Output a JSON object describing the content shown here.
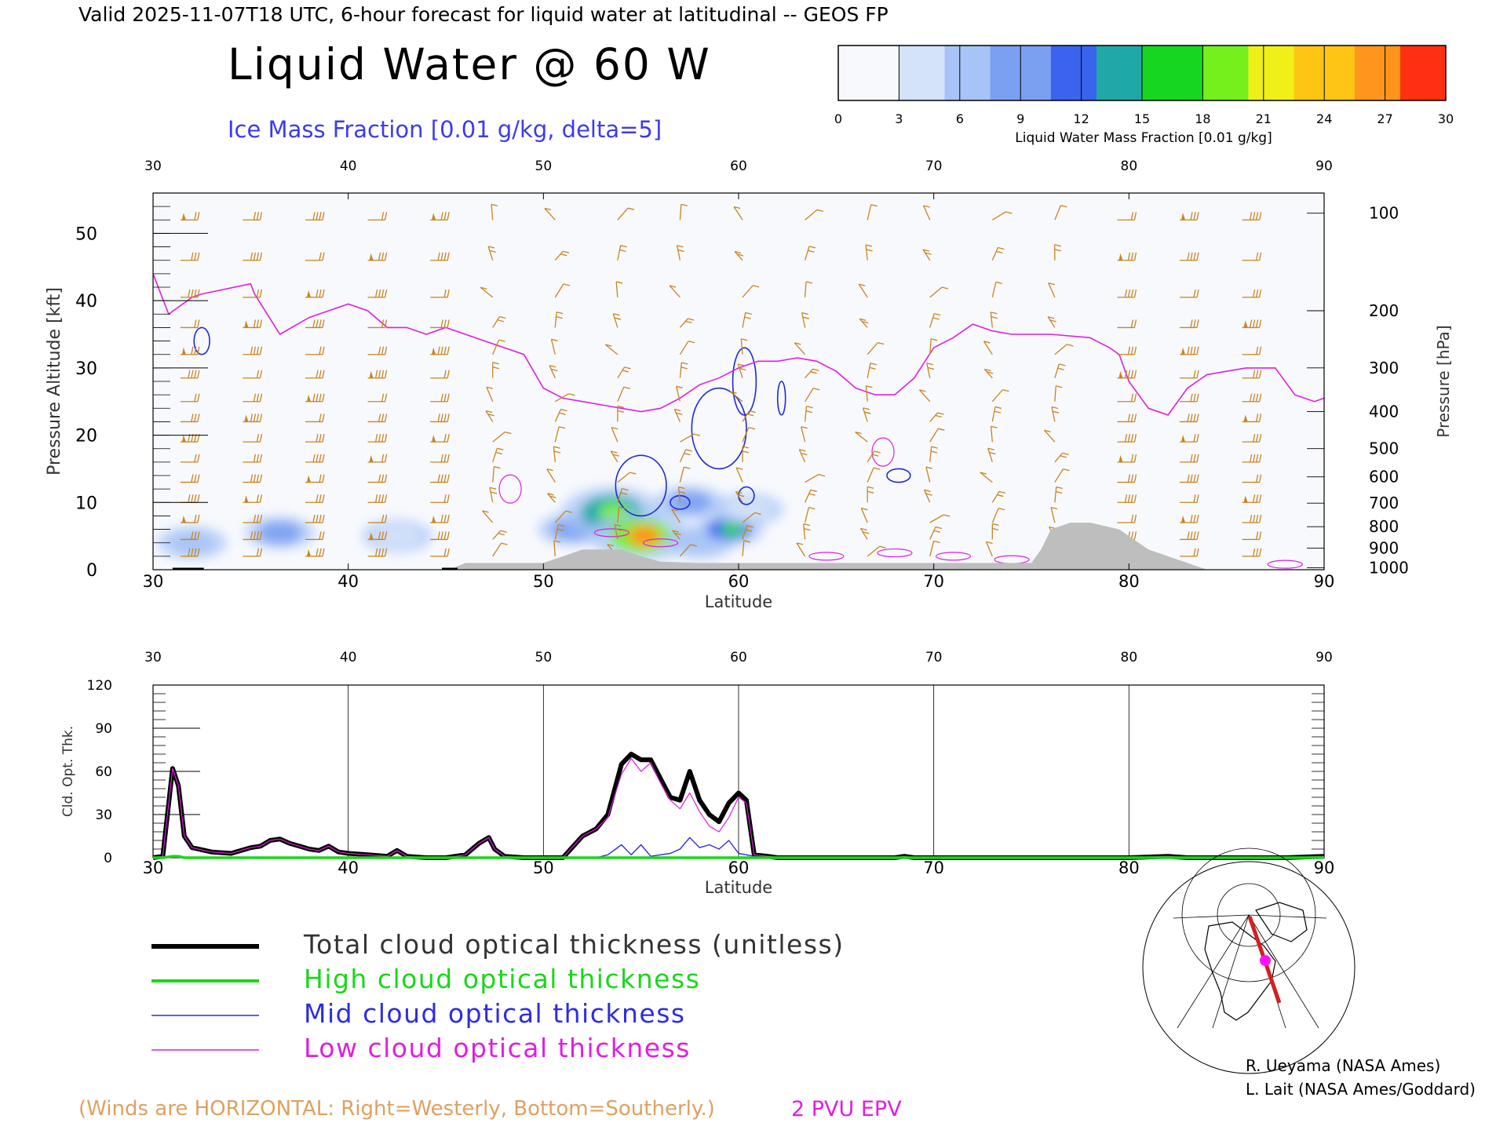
{
  "header": {
    "valid": "Valid 2025-11-07T18 UTC, 6-hour forecast for liquid water at latitudinal -- GEOS FP",
    "title": "Liquid Water @ 60 W",
    "ice_label": "Ice Mass Fraction [0.01 g/kg, delta=5]"
  },
  "colorbar": {
    "ticks": [
      "0",
      "3",
      "6",
      "9",
      "12",
      "15",
      "18",
      "21",
      "24",
      "27",
      "30"
    ],
    "title": "Liquid Water Mass Fraction [0.01 g/kg]",
    "colors": [
      "#f7f9fd",
      "#d4e2fa",
      "#a8c4f6",
      "#7ba0f1",
      "#3a63ee",
      "#1fa8a6",
      "#17d621",
      "#76f01c",
      "#eef018",
      "#ffc515",
      "#ff951c",
      "#ff3012"
    ]
  },
  "chart_data": [
    {
      "type": "heatmap",
      "title": "Liquid Water @ 60 W",
      "xlabel": "Latitude",
      "ylabel": "Pressure Altitude [kft]",
      "y2label": "Pressure [hPa]",
      "xlim": [
        30,
        90
      ],
      "ylim": [
        0,
        56
      ],
      "x_ticks": [
        "30",
        "40",
        "50",
        "60",
        "70",
        "80",
        "90"
      ],
      "y_ticks": [
        "0",
        "10",
        "20",
        "30",
        "40",
        "50"
      ],
      "pressure_ticks": [
        {
          "label": "100",
          "kft": 53
        },
        {
          "label": "200",
          "kft": 38.5
        },
        {
          "label": "300",
          "kft": 30
        },
        {
          "label": "400",
          "kft": 23.5
        },
        {
          "label": "500",
          "kft": 18
        },
        {
          "label": "600",
          "kft": 13.8
        },
        {
          "label": "700",
          "kft": 9.9
        },
        {
          "label": "800",
          "kft": 6.4
        },
        {
          "label": "900",
          "kft": 3.2
        },
        {
          "label": "1000",
          "kft": 0.3
        }
      ],
      "liquid_water_blobs": [
        {
          "lat": 32,
          "kft": 4,
          "value": 8
        },
        {
          "lat": 36.5,
          "kft": 5.5,
          "value": 12
        },
        {
          "lat": 42.5,
          "kft": 5,
          "value": 6
        },
        {
          "lat": 51.5,
          "kft": 6,
          "value": 10
        },
        {
          "lat": 53.5,
          "kft": 8.5,
          "value": 18
        },
        {
          "lat": 55,
          "kft": 5,
          "value": 25
        },
        {
          "lat": 57.5,
          "kft": 10,
          "value": 10
        },
        {
          "lat": 58,
          "kft": 4,
          "value": 9
        },
        {
          "lat": 59.5,
          "kft": 6,
          "value": 15
        },
        {
          "lat": 60.5,
          "kft": 9,
          "value": 6
        }
      ],
      "epv_2pvu_line": [
        [
          30,
          44
        ],
        [
          30.8,
          38
        ],
        [
          32,
          40.5
        ],
        [
          32.5,
          41
        ],
        [
          35,
          42.5
        ],
        [
          35.2,
          41
        ],
        [
          36.5,
          35
        ],
        [
          38,
          37.5
        ],
        [
          40,
          39.5
        ],
        [
          41,
          38.5
        ],
        [
          42,
          36
        ],
        [
          43,
          36
        ],
        [
          44,
          35
        ],
        [
          45,
          36
        ],
        [
          47,
          34
        ],
        [
          48,
          33
        ],
        [
          49,
          32
        ],
        [
          50,
          27
        ],
        [
          51,
          25.5
        ],
        [
          52,
          25
        ],
        [
          53,
          24.5
        ],
        [
          54,
          24
        ],
        [
          55,
          23.5
        ],
        [
          56,
          24
        ],
        [
          57,
          25.5
        ],
        [
          58,
          27.5
        ],
        [
          59,
          28.5
        ],
        [
          60,
          30
        ],
        [
          61,
          31
        ],
        [
          62,
          31
        ],
        [
          63,
          31.5
        ],
        [
          64,
          31
        ],
        [
          65,
          29.5
        ],
        [
          66,
          27
        ],
        [
          67,
          26
        ],
        [
          68,
          26
        ],
        [
          69,
          28.5
        ],
        [
          70,
          33
        ],
        [
          71,
          34.5
        ],
        [
          72,
          36.5
        ],
        [
          73,
          35.5
        ],
        [
          74,
          35
        ],
        [
          76,
          35
        ],
        [
          78,
          34.5
        ],
        [
          79,
          33
        ],
        [
          79.5,
          32
        ],
        [
          80,
          28
        ],
        [
          81,
          24
        ],
        [
          82,
          23
        ],
        [
          83,
          27
        ],
        [
          84,
          29
        ],
        [
          86,
          30
        ],
        [
          87.5,
          30
        ],
        [
          88.5,
          26
        ],
        [
          89.5,
          25
        ],
        [
          90,
          25.5
        ]
      ],
      "ice_contours": [
        {
          "lat": 32.5,
          "kft": 34,
          "rx": 0.4,
          "ry": 2
        },
        {
          "lat": 55,
          "kft": 12.5,
          "rx": 1.3,
          "ry": 4.5
        },
        {
          "lat": 57,
          "kft": 10,
          "rx": 0.5,
          "ry": 1
        },
        {
          "lat": 59,
          "kft": 21,
          "rx": 1.4,
          "ry": 6
        },
        {
          "lat": 60.3,
          "kft": 28,
          "rx": 0.6,
          "ry": 5
        },
        {
          "lat": 62.2,
          "kft": 25.5,
          "rx": 0.2,
          "ry": 2.5
        },
        {
          "lat": 60.4,
          "kft": 11,
          "rx": 0.4,
          "ry": 1.3
        },
        {
          "lat": 68.2,
          "kft": 14,
          "rx": 0.6,
          "ry": 1
        }
      ],
      "terrain": [
        [
          45.5,
          0.4
        ],
        [
          46,
          1
        ],
        [
          50,
          1
        ],
        [
          51,
          2
        ],
        [
          52,
          3
        ],
        [
          54,
          3
        ],
        [
          55,
          2
        ],
        [
          56,
          1.2
        ],
        [
          58,
          1
        ],
        [
          65,
          1
        ],
        [
          70,
          1
        ],
        [
          75,
          1
        ],
        [
          75.5,
          3
        ],
        [
          76,
          6
        ],
        [
          77,
          7
        ],
        [
          78,
          7
        ],
        [
          79.5,
          6
        ],
        [
          80,
          5
        ],
        [
          81,
          3
        ],
        [
          82,
          2
        ],
        [
          83,
          1
        ],
        [
          84,
          0
        ]
      ]
    },
    {
      "type": "line",
      "xlabel": "Latitude",
      "ylabel": "Cld. Opt. Thk.",
      "xlim": [
        30,
        90
      ],
      "ylim": [
        0,
        120
      ],
      "x_ticks": [
        "30",
        "40",
        "50",
        "60",
        "70",
        "80",
        "90"
      ],
      "y_ticks": [
        "0",
        "30",
        "60",
        "90",
        "120"
      ],
      "x": [
        30,
        30.5,
        31,
        31.3,
        31.6,
        32,
        33,
        34,
        35,
        35.5,
        36,
        36.5,
        37,
        37.5,
        38,
        38.5,
        39,
        39.5,
        40,
        41,
        42,
        42.5,
        43,
        44,
        45,
        46,
        46.7,
        47.2,
        47.5,
        48,
        49,
        50,
        51,
        52,
        52.7,
        53.3,
        54,
        54.5,
        55,
        55.5,
        56,
        56.5,
        57,
        57.5,
        58,
        58.5,
        59,
        59.5,
        60,
        60.4,
        60.8,
        61.5,
        62,
        65,
        68,
        68.5,
        69,
        75,
        80,
        82,
        83,
        85,
        88,
        90
      ],
      "series": [
        {
          "name": "Total cloud optical thickness (unitless)",
          "color": "#000000",
          "values": [
            0,
            1,
            62,
            50,
            15,
            7,
            4,
            3,
            7,
            8,
            12,
            13,
            10,
            8,
            6,
            5,
            8,
            4,
            3,
            2,
            1,
            5,
            1,
            0,
            0,
            2,
            10,
            14,
            6,
            1,
            0,
            0,
            0,
            15,
            20,
            30,
            65,
            72,
            68,
            68,
            55,
            42,
            40,
            60,
            40,
            30,
            25,
            38,
            45,
            40,
            2,
            1,
            0,
            0,
            0,
            1,
            0,
            0,
            0,
            1,
            0,
            0,
            0,
            1
          ]
        },
        {
          "name": "High cloud optical thickness",
          "color": "#18d818",
          "values": [
            0,
            0,
            1,
            1,
            0,
            0,
            0,
            0,
            0,
            0,
            0,
            0,
            0,
            0,
            0,
            0,
            0,
            0,
            0,
            0,
            0,
            0,
            0,
            0,
            0,
            0,
            0,
            0,
            0,
            0,
            0,
            0,
            0,
            0,
            0,
            0,
            0,
            0,
            0,
            0,
            0,
            0,
            0,
            0,
            0,
            0,
            0,
            0,
            0,
            0,
            0,
            0,
            0,
            0,
            0,
            0,
            0,
            0,
            0,
            0,
            0,
            0,
            0,
            0
          ]
        },
        {
          "name": "Mid cloud optical thickness",
          "color": "#2c2ce6",
          "values": [
            0,
            0,
            1,
            1,
            0,
            0,
            0,
            0,
            0,
            0,
            0,
            0,
            0,
            0,
            0,
            0,
            0,
            0,
            0,
            0,
            0,
            0,
            0,
            0,
            0,
            0,
            0,
            0,
            0,
            0,
            0,
            0,
            0,
            0,
            0,
            2,
            9,
            2,
            9,
            1,
            2,
            3,
            6,
            14,
            7,
            9,
            6,
            12,
            3,
            2,
            1,
            0,
            0,
            0,
            0,
            0,
            0,
            0,
            0,
            0,
            0,
            0,
            0,
            0
          ]
        },
        {
          "name": "Low cloud optical thickness",
          "color": "#e01ee0",
          "values": [
            0,
            1,
            62,
            50,
            15,
            7,
            4,
            3,
            7,
            8,
            12,
            13,
            10,
            8,
            6,
            5,
            8,
            4,
            3,
            2,
            1,
            5,
            1,
            0,
            0,
            2,
            10,
            14,
            6,
            1,
            0,
            0,
            0,
            15,
            20,
            28,
            58,
            69,
            60,
            66,
            52,
            40,
            34,
            45,
            32,
            22,
            18,
            28,
            42,
            38,
            2,
            1,
            0,
            0,
            0,
            1,
            0,
            0,
            0,
            1,
            0,
            0,
            0,
            1
          ]
        }
      ]
    }
  ],
  "legend": {
    "items": [
      {
        "label": "Total cloud optical thickness (unitless)",
        "color": "#000000"
      },
      {
        "label": "High cloud optical thickness",
        "color": "#18d818"
      },
      {
        "label": "Mid cloud optical thickness",
        "color": "#2c2ce6"
      },
      {
        "label": "Low cloud optical thickness",
        "color": "#e01ee0"
      }
    ]
  },
  "wind_barb_color": "#c88420",
  "epv_color": "#e01ee0",
  "ice_color": "#1e2ad6",
  "terrain_color": "#bebebe",
  "footer": {
    "winds_note": "(Winds are HORIZONTAL: Right=Westerly, Bottom=Southerly.)",
    "epv_note": "2 PVU EPV",
    "credit_1": "R. Ueyama (NASA Ames)",
    "credit_2": "L. Lait (NASA Ames/Goddard)"
  }
}
